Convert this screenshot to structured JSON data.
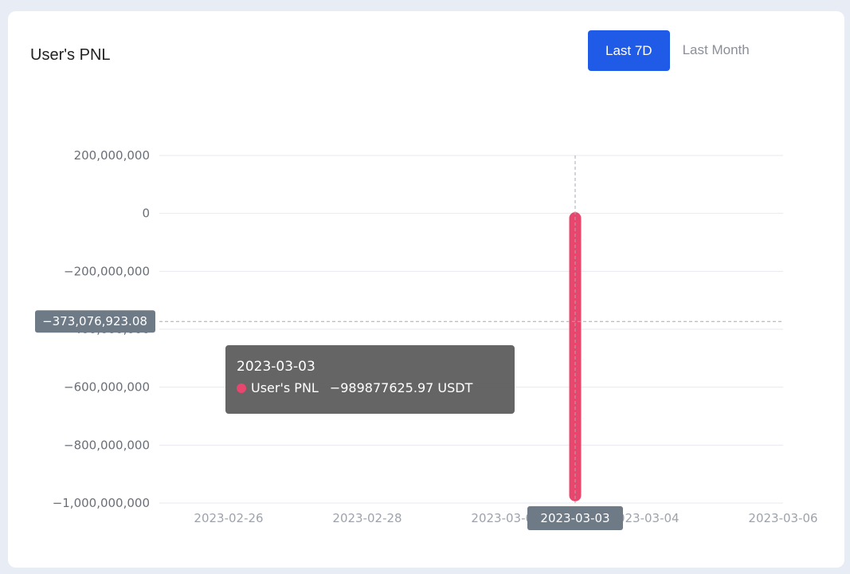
{
  "card": {
    "title": "User's PNL"
  },
  "range": {
    "options": [
      "Last 7D",
      "Last Month"
    ],
    "active": "Last 7D"
  },
  "colors": {
    "accent": "#1f5be6",
    "series": "#e8466c",
    "pointer_label_bg": "#6f7a87"
  },
  "chart_data": {
    "type": "bar",
    "title": "User's PNL",
    "xlabel": "",
    "ylabel": "",
    "x_ticks": [
      "2023-02-26",
      "2023-02-28",
      "2023-03-02",
      "2023-03-04",
      "2023-03-06"
    ],
    "x_range": [
      "2023-02-25",
      "2023-03-06"
    ],
    "y_ticks": [
      200000000,
      0,
      -200000000,
      -400000000,
      -600000000,
      -800000000,
      -1000000000
    ],
    "y_tick_labels": [
      "200,000,000",
      "0",
      "−200,000,000",
      "−400,000,000",
      "−600,000,000",
      "−800,000,000",
      "−1,000,000,000"
    ],
    "ylim": [
      -1000000000,
      200000000
    ],
    "grid": true,
    "series": [
      {
        "name": "User's PNL",
        "points": [
          {
            "x": "2023-03-03",
            "y": -989877625.97
          }
        ]
      }
    ],
    "pointer": {
      "x_label": "2023-03-03",
      "y_value": -373076923.08,
      "y_label": "−373,076,923.08"
    }
  },
  "tooltip": {
    "date": "2023-03-03",
    "series_label": "User's PNL",
    "value_text": "−989877625.97 USDT"
  }
}
